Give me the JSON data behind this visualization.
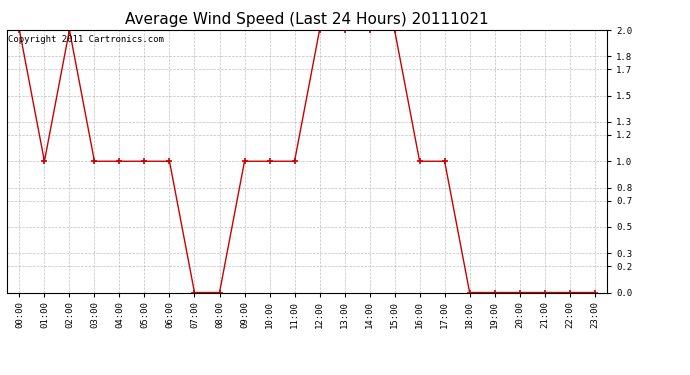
{
  "title": "Average Wind Speed (Last 24 Hours) 20111021",
  "copyright_text": "Copyright 2011 Cartronics.com",
  "x_labels": [
    "00:00",
    "01:00",
    "02:00",
    "03:00",
    "04:00",
    "05:00",
    "06:00",
    "07:00",
    "08:00",
    "09:00",
    "10:00",
    "11:00",
    "12:00",
    "13:00",
    "14:00",
    "15:00",
    "16:00",
    "17:00",
    "18:00",
    "19:00",
    "20:00",
    "21:00",
    "22:00",
    "23:00"
  ],
  "y_values": [
    2.0,
    1.0,
    2.0,
    1.0,
    1.0,
    1.0,
    1.0,
    0.0,
    0.0,
    1.0,
    1.0,
    1.0,
    2.0,
    2.0,
    2.0,
    2.0,
    1.0,
    1.0,
    0.0,
    0.0,
    0.0,
    0.0,
    0.0,
    0.0
  ],
  "line_color": "#cc0000",
  "marker_color": "#cc0000",
  "bg_color": "#ffffff",
  "plot_bg_color": "#ffffff",
  "grid_color": "#b0b0b0",
  "y_ticks": [
    0.0,
    0.2,
    0.3,
    0.5,
    0.7,
    0.8,
    1.0,
    1.2,
    1.3,
    1.5,
    1.7,
    1.8,
    2.0
  ],
  "ylim": [
    0.0,
    2.0
  ],
  "title_fontsize": 11,
  "tick_fontsize": 6.5,
  "copyright_fontsize": 6.5
}
